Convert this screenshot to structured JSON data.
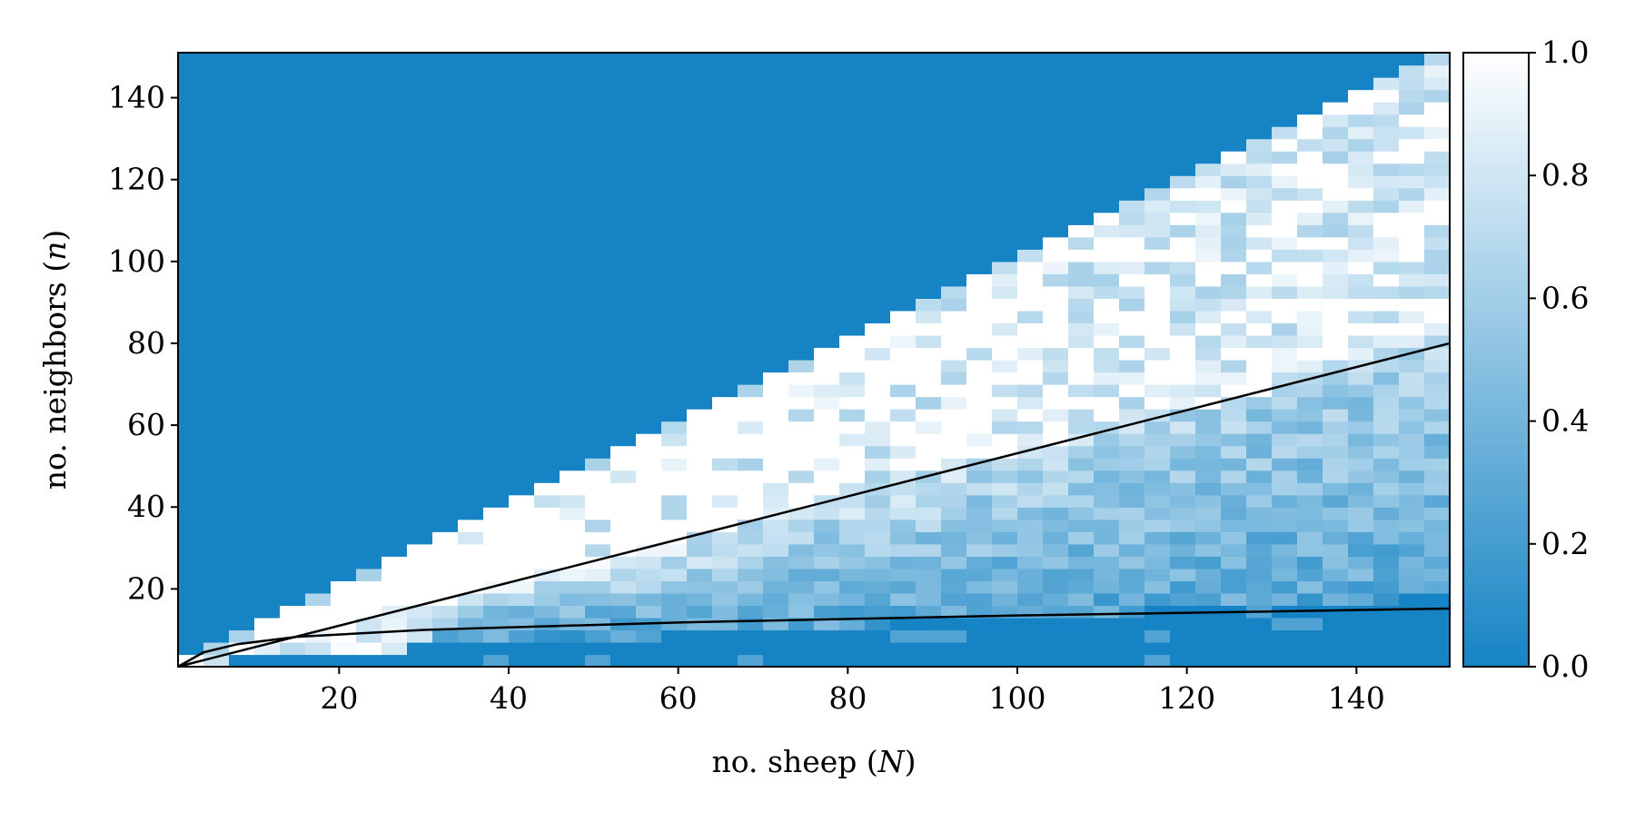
{
  "chart_data": {
    "type": "heatmap",
    "xlabel_text": "no. sheep (",
    "xlabel_var": "N",
    "xlabel_close": ")",
    "ylabel_text": "no. neighbors (",
    "ylabel_var": "n",
    "ylabel_close": ")",
    "xlim": [
      1,
      151
    ],
    "ylim": [
      1,
      151
    ],
    "x_ticks": [
      20,
      40,
      60,
      80,
      100,
      120,
      140
    ],
    "y_ticks": [
      20,
      40,
      60,
      80,
      100,
      120,
      140
    ],
    "colorbar": {
      "range": [
        0.0,
        1.0
      ],
      "ticks": [
        "0.0",
        "0.2",
        "0.4",
        "0.6",
        "0.8",
        "1.0"
      ],
      "colors": [
        "#1684c4",
        "#ffffff"
      ]
    },
    "grid": false,
    "cell_step": 3,
    "region_values": {
      "above_diagonal": 0.0,
      "near_bottom": 0.0,
      "lower_band": 0.3,
      "middle_band": 0.55,
      "upper_band": 0.9
    },
    "lines": [
      {
        "name": "",
        "x": [
          1,
          151
        ],
        "y": [
          1,
          80
        ]
      },
      {
        "name": "",
        "x": [
          1,
          4,
          8,
          15,
          30,
          60,
          100,
          151
        ],
        "y": [
          1,
          4.5,
          6.5,
          8.3,
          10,
          11.8,
          13.5,
          15.2
        ]
      }
    ]
  }
}
